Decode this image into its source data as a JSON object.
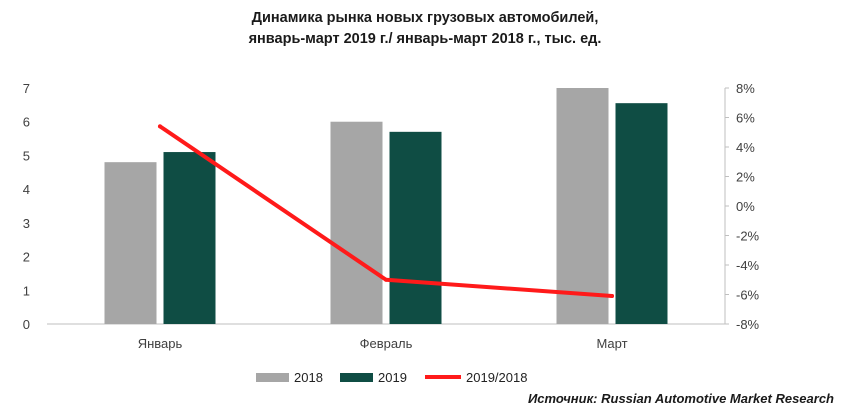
{
  "title": {
    "line1": "Динамика рынка новых грузовых автомобилей,",
    "line2": "январь-март 2019 г./ январь-март 2018 г., тыс. ед."
  },
  "source": "Источник: Russian Automotive Market Research",
  "colors": {
    "bar_2018": "#a6a6a6",
    "bar_2019": "#0f4d44",
    "line_ratio": "#ff1a1a",
    "axis": "#bfbfbf"
  },
  "chart_data": {
    "type": "bar",
    "categories": [
      "Январь",
      "Февраль",
      "Март"
    ],
    "series": [
      {
        "name": "2018",
        "axis": "left",
        "kind": "bar",
        "values": [
          4.8,
          6.0,
          7.0
        ]
      },
      {
        "name": "2019",
        "axis": "left",
        "kind": "bar",
        "values": [
          5.1,
          5.7,
          6.55
        ]
      },
      {
        "name": "2019/2018",
        "axis": "right",
        "kind": "line",
        "values": [
          5.4,
          -5.0,
          -6.1
        ]
      }
    ],
    "left_axis": {
      "min": 0,
      "max": 7,
      "ticks": [
        "0",
        "1",
        "2",
        "3",
        "4",
        "5",
        "6",
        "7"
      ]
    },
    "right_axis": {
      "min": -8,
      "max": 8,
      "ticks": [
        "-8%",
        "-6%",
        "-4%",
        "-2%",
        "0%",
        "2%",
        "4%",
        "6%",
        "8%"
      ]
    },
    "legend": {
      "position": "bottom",
      "entries": [
        "2018",
        "2019",
        "2019/2018"
      ]
    },
    "grid": false
  }
}
